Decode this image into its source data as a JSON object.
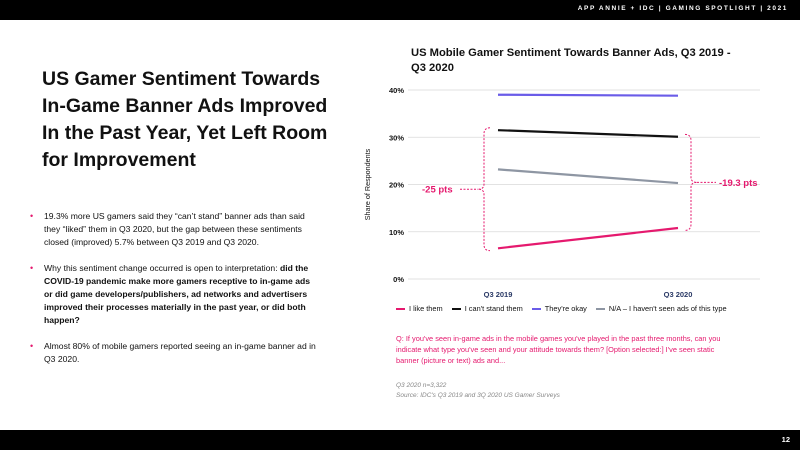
{
  "header": {
    "text": "APP ANNIE + IDC  |  GAMING SPOTLIGHT  |  2021"
  },
  "headline": "US Gamer Sentiment Towards In-Game Banner Ads Improved In the Past Year, Yet Left Room for Improvement",
  "bullets": [
    {
      "text": "19.3% more US gamers said they “can’t stand” banner ads than said they “liked” them in Q3 2020, but the gap between these sentiments closed (improved) 5.7% between Q3 2019 and Q3 2020."
    },
    {
      "text": "Why this sentiment change occurred is open to interpretation: ",
      "bold": "did the COVID-19 pandemic make more gamers receptive to in-game ads or did game developers/publishers, ad networks and advertisers improved their processes materially in the past year, or did both happen?"
    },
    {
      "text": "Almost 80% of mobile gamers reported seeing an in-game banner ad in Q3 2020."
    }
  ],
  "chart_data": {
    "type": "line",
    "title": "US Mobile Gamer Sentiment Towards Banner Ads, Q3 2019 - Q3 2020",
    "ylabel": "Share of Respondents",
    "xlabel": "",
    "categories": [
      "Q3 2019",
      "Q3 2020"
    ],
    "ylim": [
      0,
      40
    ],
    "yticks": [
      "0%",
      "10%",
      "20%",
      "30%",
      "40%"
    ],
    "grid": true,
    "legend_position": "bottom",
    "series": [
      {
        "name": "I like them",
        "color": "#e5196e",
        "values": [
          6.5,
          10.8
        ]
      },
      {
        "name": "I can't stand them",
        "color": "#111111",
        "values": [
          31.5,
          30.1
        ]
      },
      {
        "name": "They're okay",
        "color": "#6a5ce8",
        "values": [
          39.0,
          38.8
        ]
      },
      {
        "name": "N/A – I haven't seen ads of this type",
        "color": "#8e96a3",
        "values": [
          23.2,
          20.3
        ]
      }
    ],
    "annotations": [
      {
        "text": "-25 pts",
        "at": "Q3 2019",
        "color": "#e5196e"
      },
      {
        "text": "-19.3 pts",
        "at": "Q3 2020",
        "color": "#e5196e"
      }
    ]
  },
  "question": "Q: If you've seen in-game ads in the mobile games you've played in the past three months, can you indicate what type you've seen and your attitude towards them? [Option selected:] I've seen static banner (picture or text) ads and...",
  "footnote": {
    "sample": "Q3 2020 n=3,322",
    "source": "Source: IDC's Q3 2019 and 3Q 2020 US Gamer Surveys"
  },
  "page_number": "12"
}
